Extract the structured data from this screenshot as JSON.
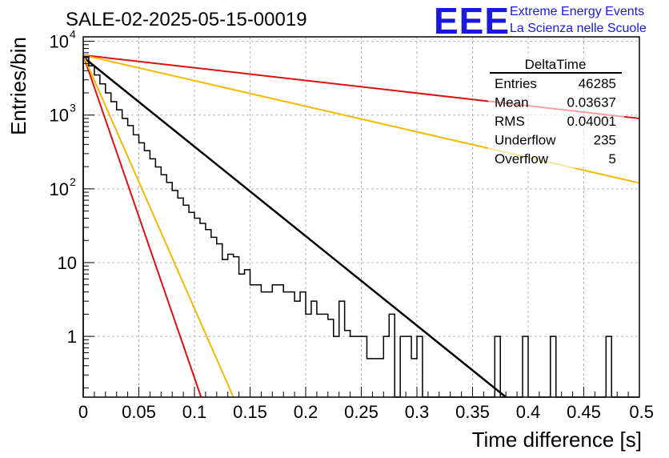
{
  "chart_data": {
    "type": "line",
    "title": "SALE-02-2025-05-15-00019",
    "xlabel": "Time difference [s]",
    "ylabel": "Entries/bin",
    "xlim": [
      0,
      0.5
    ],
    "ylim": [
      0.15,
      11500
    ],
    "y_scale": "log",
    "grid": true,
    "x_ticks": [
      "0",
      "0.05",
      "0.1",
      "0.15",
      "0.2",
      "0.25",
      "0.3",
      "0.35",
      "0.4",
      "0.45",
      "0.5"
    ],
    "y_ticks": [
      {
        "value": 1,
        "label": "1",
        "sup": ""
      },
      {
        "value": 10,
        "label": "10",
        "sup": ""
      },
      {
        "value": 100,
        "label": "10",
        "sup": "2"
      },
      {
        "value": 1000,
        "label": "10",
        "sup": "3"
      },
      {
        "value": 10000,
        "label": "10",
        "sup": "4"
      }
    ],
    "histogram": {
      "bin_width": 0.005,
      "counts": [
        6200,
        4650,
        3500,
        2650,
        2000,
        1520,
        1180,
        900,
        720,
        540,
        420,
        330,
        255,
        198,
        155,
        122,
        95,
        75,
        60,
        48,
        40,
        34,
        28,
        22,
        18,
        11,
        13,
        12,
        7,
        8,
        5,
        5,
        4,
        4,
        5,
        5,
        4,
        4,
        3,
        4,
        2,
        3,
        2,
        2,
        1.7,
        1,
        3,
        1.2,
        1,
        1,
        1,
        0.5,
        0.5,
        0.5,
        1,
        2,
        0,
        1,
        1,
        0.5,
        1,
        0,
        0,
        0,
        0,
        0,
        0,
        0,
        0,
        0,
        0,
        0,
        0,
        0,
        1,
        0,
        0,
        0,
        0,
        1,
        0,
        0,
        0,
        0,
        1,
        0,
        0,
        0,
        0,
        0,
        0,
        0,
        0,
        0,
        1,
        0,
        0,
        0,
        0,
        0
      ],
      "color": "#000000"
    },
    "fits": [
      {
        "y0": 6100,
        "y_at_end": 0.15,
        "x_end": 0.38,
        "color": "#000000"
      },
      {
        "y0": 6500,
        "y_at_end": 0.15,
        "x_end": 0.106,
        "color": "#e01010"
      },
      {
        "y0": 6500,
        "y_at_end": 0.15,
        "x_end": 0.135,
        "color": "#f5b800"
      },
      {
        "y0": 6500,
        "y_at_end": 900,
        "x_end": 0.5,
        "color": "#e01010"
      },
      {
        "y0": 6500,
        "y_at_end": 120,
        "x_end": 0.5,
        "color": "#f5b800"
      }
    ],
    "stats": {
      "name": "DeltaTime",
      "rows": [
        {
          "label": "Entries",
          "value": "46285"
        },
        {
          "label": "Mean",
          "value": "0.03637"
        },
        {
          "label": "RMS",
          "value": "0.04001"
        },
        {
          "label": "Underflow",
          "value": "235"
        },
        {
          "label": "Overflow",
          "value": "5"
        }
      ]
    },
    "logo": {
      "mark": "EEE",
      "line1": "Extreme Energy Events",
      "line2": "La Scienza nelle Scuole",
      "color": "#1a1adf"
    }
  }
}
